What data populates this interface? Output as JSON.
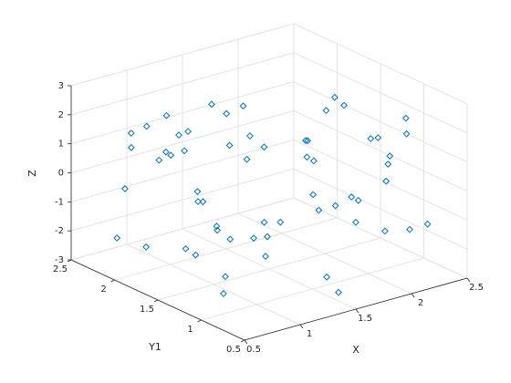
{
  "chart_data": {
    "type": "scatter3d",
    "xlabel": "X",
    "ylabel": "Y1",
    "zlabel": "Z",
    "color": "#0072bd",
    "grid": true,
    "xlim": [
      0.5,
      2.5
    ],
    "ylim": [
      0.5,
      2.5
    ],
    "zlim": [
      -3,
      3
    ],
    "xticks": [
      0.5,
      1,
      1.5,
      2,
      2.5
    ],
    "yticks": [
      0.5,
      1,
      1.5,
      2,
      2.5
    ],
    "zticks": [
      -3,
      -2,
      -1,
      0,
      1,
      2,
      3
    ],
    "x": [
      1.2,
      0.8,
      2.1,
      1.5,
      0.6,
      1.9,
      2.3,
      1.1,
      0.7,
      1.6,
      2.4,
      1.3,
      0.9,
      2.0,
      1.7,
      0.55,
      1.4,
      2.2,
      1.0,
      1.8,
      0.65,
      1.25,
      2.35,
      1.55,
      0.85,
      1.95,
      1.15,
      2.15,
      0.75,
      1.45,
      2.05,
      1.35,
      0.95,
      1.75,
      2.45,
      1.05,
      0.6,
      1.65,
      2.25,
      1.5,
      0.7,
      1.85,
      1.2,
      2.0,
      0.9,
      1.4,
      2.3,
      1.1,
      1.7,
      0.8,
      2.1,
      1.3,
      1.9,
      0.65,
      1.6,
      2.4,
      1.0,
      1.45,
      2.2,
      0.75
    ],
    "y": [
      2.3,
      1.2,
      0.9,
      1.8,
      2.1,
      1.5,
      0.7,
      2.4,
      1.0,
      0.6,
      1.9,
      1.3,
      2.0,
      2.2,
      1.1,
      1.7,
      0.8,
      1.4,
      2.45,
      0.55,
      1.6,
      2.0,
      1.2,
      0.9,
      1.8,
      2.3,
      1.5,
      0.75,
      2.2,
      1.0,
      1.7,
      2.35,
      1.4,
      0.65,
      1.1,
      1.9,
      0.85,
      2.15,
      1.6,
      0.7,
      1.3,
      1.0,
      2.05,
      2.4,
      0.6,
      1.55,
      0.95,
      1.75,
      2.25,
      1.45,
      1.85,
      0.8,
      1.25,
      2.0,
      1.65,
      1.4,
      0.9,
      2.1,
      1.05,
      1.5
    ],
    "z": [
      1.5,
      -0.5,
      0.8,
      2.2,
      -1.8,
      0.3,
      -1.2,
      1.1,
      -2.3,
      0.5,
      1.4,
      -0.9,
      0.7,
      -0.3,
      2.8,
      -1.5,
      0.1,
      -2.0,
      0.9,
      -0.7,
      1.8,
      -1.1,
      0.4,
      -2.5,
      1.2,
      0.0,
      -1.6,
      2.0,
      -0.4,
      1.6,
      -1.3,
      0.6,
      -0.8,
      2.4,
      -2.1,
      1.0,
      -1.4,
      0.2,
      1.7,
      -2.7,
      0.8,
      -0.2,
      1.3,
      -1.0,
      0.5,
      -1.9,
      2.1,
      -0.6,
      1.1,
      -1.7,
      0.3,
      2.6,
      -0.9,
      1.4,
      -2.2,
      0.7,
      -1.2,
      1.9,
      -0.1,
      -1.5
    ]
  }
}
